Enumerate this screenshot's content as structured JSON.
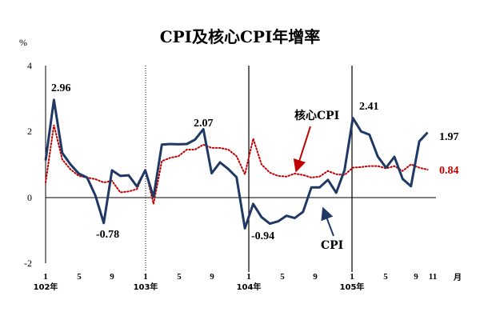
{
  "chart_data": {
    "type": "line",
    "title": "CPI及核心CPI年增率",
    "ylabel": "%",
    "ylim": [
      -2,
      4
    ],
    "yticks": [
      "4",
      "2",
      "0",
      "-2"
    ],
    "unit_label": "月",
    "x_tick_labels": [
      "1",
      "5",
      "9",
      "1",
      "5",
      "9",
      "1",
      "5",
      "9",
      "1",
      "5",
      "9",
      "11"
    ],
    "year_labels": [
      "102年",
      "103年",
      "104年",
      "105年"
    ],
    "series": [
      {
        "name": "CPI",
        "color": "#1f3864",
        "style": "solid",
        "values": [
          1.12,
          2.96,
          1.35,
          1.0,
          0.72,
          0.6,
          0.05,
          -0.78,
          0.82,
          0.65,
          0.67,
          0.33,
          0.82,
          0.01,
          1.6,
          1.62,
          1.61,
          1.62,
          1.75,
          2.07,
          0.73,
          1.06,
          0.86,
          0.61,
          -0.94,
          -0.2,
          -0.6,
          -0.8,
          -0.73,
          -0.56,
          -0.63,
          -0.44,
          0.3,
          0.3,
          0.53,
          0.14,
          0.83,
          2.41,
          2.0,
          1.9,
          1.24,
          0.9,
          1.23,
          0.56,
          0.34,
          1.7,
          1.97
        ]
      },
      {
        "name": "核心CPI",
        "color": "#c00000",
        "style": "dotted",
        "values": [
          0.45,
          2.2,
          1.15,
          0.85,
          0.65,
          0.6,
          0.55,
          0.45,
          0.5,
          0.15,
          0.18,
          0.25,
          0.85,
          -0.2,
          1.1,
          1.2,
          1.25,
          1.45,
          1.45,
          1.6,
          1.5,
          1.5,
          1.45,
          1.25,
          0.7,
          1.78,
          1.0,
          0.75,
          0.65,
          0.63,
          0.72,
          0.68,
          0.6,
          0.63,
          0.8,
          0.7,
          0.68,
          0.9,
          0.92,
          0.95,
          0.95,
          0.88,
          0.95,
          0.8,
          1.0,
          0.9,
          0.84
        ]
      }
    ],
    "annotations": [
      "2.96",
      "-0.78",
      "2.07",
      "-0.94",
      "2.41",
      "1.97",
      "0.84"
    ],
    "grid": false
  }
}
